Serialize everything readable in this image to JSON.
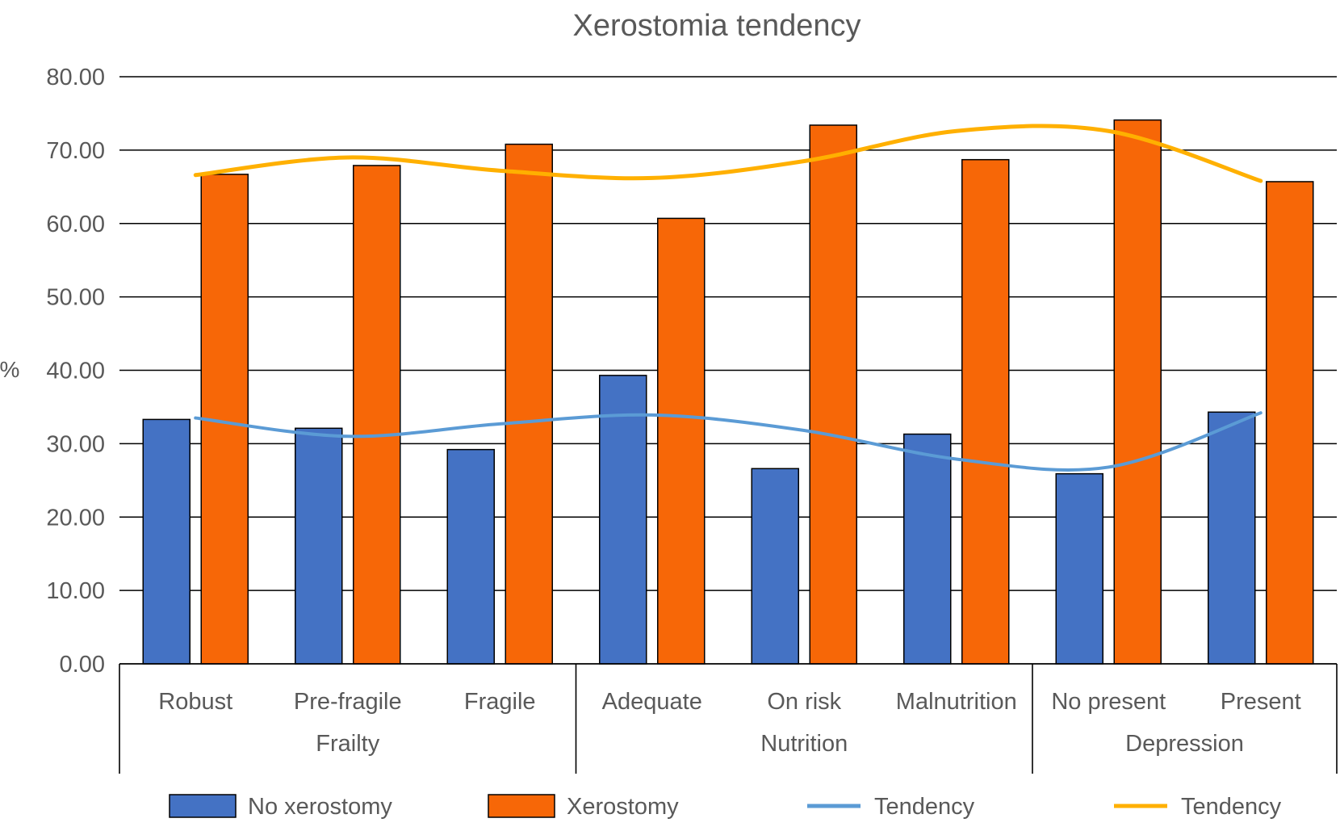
{
  "chart_data": {
    "type": "bar",
    "title": "Xerostomia tendency",
    "ylabel": "%",
    "xlabel": "",
    "ylim": [
      0,
      80
    ],
    "yticks": [
      "0.00",
      "10.00",
      "20.00",
      "30.00",
      "40.00",
      "50.00",
      "60.00",
      "70.00",
      "80.00"
    ],
    "grid": true,
    "legend_position": "bottom",
    "categories": [
      "Robust",
      "Pre-fragile",
      "Fragile",
      "Adequate",
      "On risk",
      "Malnutrition",
      "No present",
      "Present"
    ],
    "groups": [
      {
        "label": "Frailty",
        "count": 3
      },
      {
        "label": "Nutrition",
        "count": 3
      },
      {
        "label": "Depression",
        "count": 2
      }
    ],
    "series": [
      {
        "name": "No xerostomy",
        "kind": "bar",
        "color": "#4472C4",
        "values": [
          33.3,
          32.1,
          29.2,
          39.3,
          26.6,
          31.3,
          25.9,
          34.3
        ]
      },
      {
        "name": "Xerostomy",
        "kind": "bar",
        "color": "#F76707",
        "values": [
          66.7,
          67.9,
          70.8,
          60.7,
          73.4,
          68.7,
          74.1,
          65.7
        ]
      }
    ],
    "trendlines": [
      {
        "name": "Tendency",
        "color": "#5B9BD5",
        "values": [
          33.5,
          31.0,
          32.7,
          33.9,
          31.8,
          27.9,
          26.8,
          34.2
        ]
      },
      {
        "name": "Tendency",
        "color": "#FFB000",
        "values": [
          66.6,
          69.0,
          67.2,
          66.2,
          68.5,
          72.6,
          72.6,
          65.8
        ]
      }
    ]
  }
}
